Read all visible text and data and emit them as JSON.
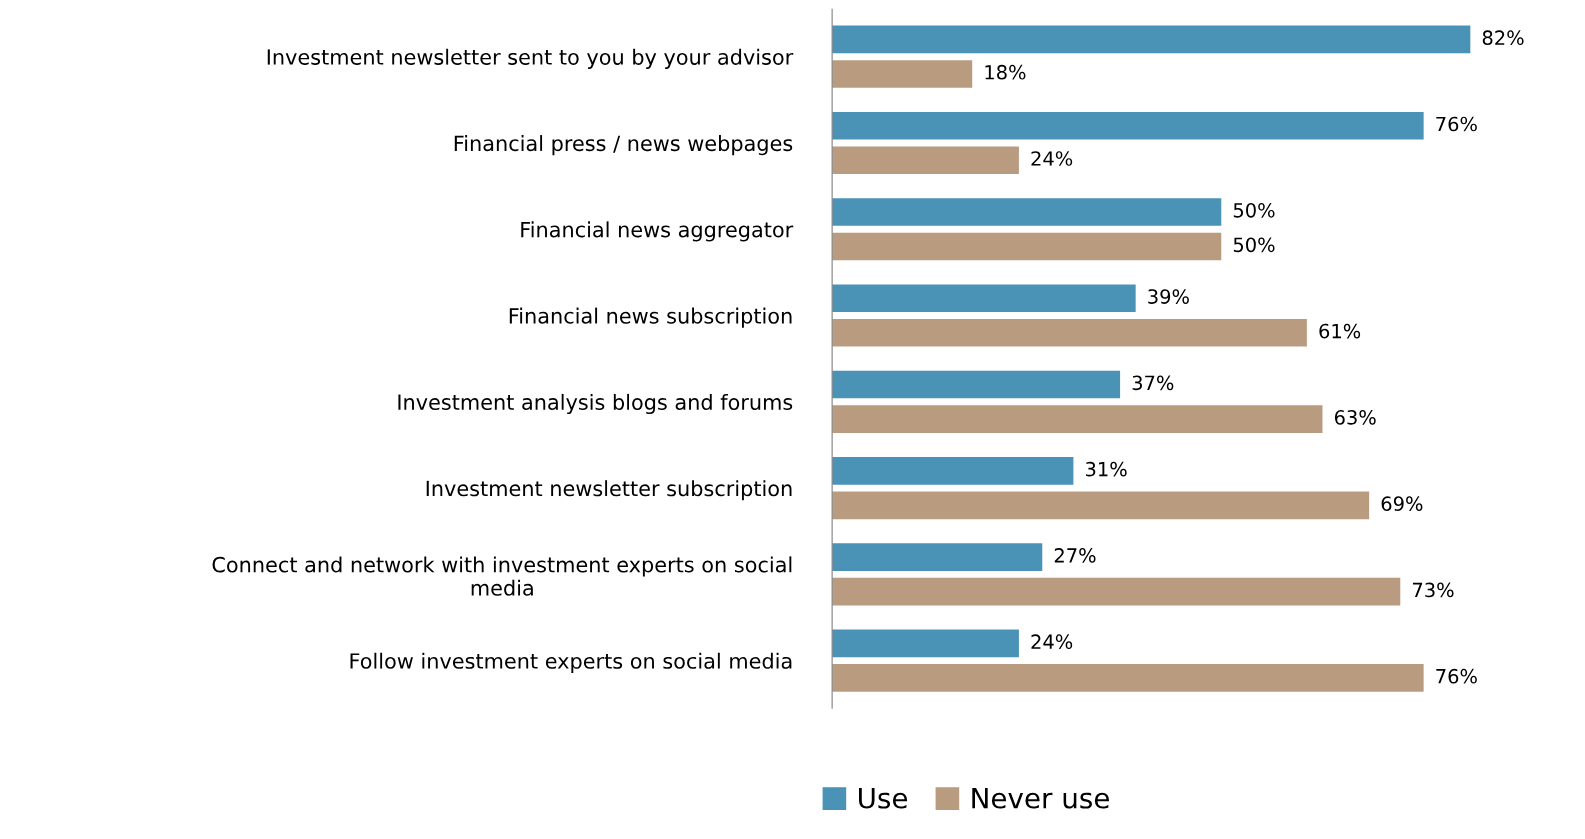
{
  "chart_data": {
    "type": "bar",
    "orientation": "horizontal",
    "categories": [
      "Investment newsletter sent to you by your advisor",
      "Financial press / news webpages",
      "Financial news aggregator",
      "Financial news subscription",
      "Investment analysis blogs and forums",
      "Investment newsletter subscription",
      "Connect and network with investment experts on social\nmedia",
      "Follow investment experts on social media"
    ],
    "series": [
      {
        "name": "Use",
        "color": "#4a92b6",
        "values": [
          82,
          76,
          50,
          39,
          37,
          31,
          27,
          24
        ],
        "value_labels": [
          "82%",
          "76%",
          "50%",
          "39%",
          "37%",
          "31%",
          "27%",
          "24%"
        ]
      },
      {
        "name": "Never use",
        "color": "#b99c7f",
        "values": [
          18,
          24,
          50,
          61,
          63,
          69,
          73,
          76
        ],
        "value_labels": [
          "18%",
          "24%",
          "50%",
          "61%",
          "63%",
          "69%",
          "73%",
          "76%"
        ]
      }
    ],
    "grid": false,
    "legend": "bottom"
  }
}
